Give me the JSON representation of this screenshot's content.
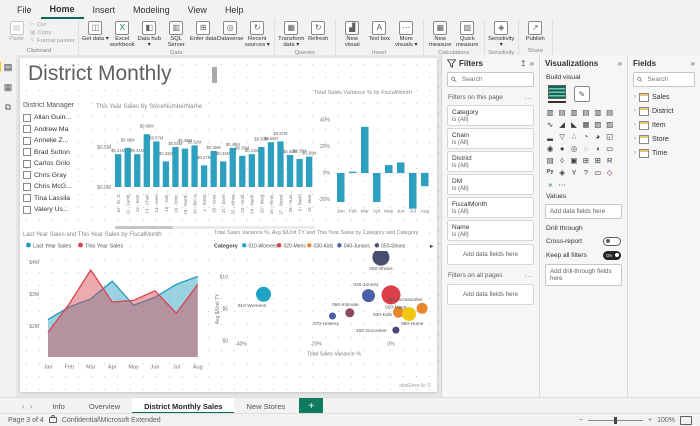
{
  "menu": {
    "items": [
      "File",
      "Home",
      "Insert",
      "Modeling",
      "View",
      "Help"
    ],
    "active": "Home"
  },
  "ribbon": {
    "groups": [
      {
        "name": "Clipboard",
        "buttons": [
          {
            "label": "Paste",
            "icon": "paste-icon",
            "disabled": true
          },
          {
            "label": "Cut",
            "icon": "cut-icon",
            "small": true,
            "disabled": true
          },
          {
            "label": "Copy",
            "icon": "copy-icon",
            "small": true,
            "disabled": true
          },
          {
            "label": "Format painter",
            "icon": "format-painter-icon",
            "small": true,
            "disabled": true
          }
        ]
      },
      {
        "name": "Data",
        "buttons": [
          {
            "label": "Get data",
            "icon": "get-data-icon",
            "dropdown": true
          },
          {
            "label": "Excel workbook",
            "icon": "excel-icon"
          },
          {
            "label": "Data hub",
            "icon": "data-hub-icon",
            "dropdown": true
          },
          {
            "label": "SQL Server",
            "icon": "sql-server-icon"
          },
          {
            "label": "Enter data",
            "icon": "enter-data-icon"
          },
          {
            "label": "Dataverse",
            "icon": "dataverse-icon"
          },
          {
            "label": "Recent sources",
            "icon": "recent-sources-icon",
            "dropdown": true
          }
        ]
      },
      {
        "name": "Queries",
        "buttons": [
          {
            "label": "Transform data",
            "icon": "transform-data-icon",
            "dropdown": true
          },
          {
            "label": "Refresh",
            "icon": "refresh-icon"
          }
        ]
      },
      {
        "name": "Insert",
        "buttons": [
          {
            "label": "New visual",
            "icon": "new-visual-icon"
          },
          {
            "label": "Text box",
            "icon": "text-box-icon"
          },
          {
            "label": "More visuals",
            "icon": "more-visuals-icon",
            "dropdown": true
          }
        ]
      },
      {
        "name": "Calculations",
        "buttons": [
          {
            "label": "New measure",
            "icon": "new-measure-icon"
          },
          {
            "label": "Quick measure",
            "icon": "quick-measure-icon"
          }
        ]
      },
      {
        "name": "Sensitivity",
        "buttons": [
          {
            "label": "Sensitivity",
            "icon": "sensitivity-icon",
            "dropdown": true
          }
        ]
      },
      {
        "name": "Share",
        "buttons": [
          {
            "label": "Publish",
            "icon": "publish-icon"
          }
        ]
      }
    ]
  },
  "view_rail": {
    "items": [
      "report-view",
      "data-view",
      "model-view"
    ],
    "active": "report-view"
  },
  "page": {
    "title": "District Monthly",
    "watermark": "obviEnce llc ©",
    "slicer": {
      "title": "District Manager",
      "items": [
        "Allan Guin...",
        "Andrew Ma",
        "Annelie Z...",
        "Brad Sutton",
        "Carlos Grilo",
        "Chris Gray",
        "Chris McG...",
        "Tina Lassila",
        "Valery Us..."
      ]
    }
  },
  "chart_data": [
    {
      "id": "store-sales",
      "type": "bar",
      "title": "This Year Sales by StoreNumberName",
      "categories": [
        "10 - St. O...",
        "11 - Camb...",
        "12 - Kent...",
        "13 - Charl...",
        "14 - Harri...",
        "15 - York...",
        "16 - Winc...",
        "18 - Worth...",
        "19 - Bel Ai...",
        "2 - Winst...",
        "20 - Gree...",
        "21 - Zane...",
        "22 - Whee...",
        "23 - Graft...",
        "24 - North...",
        "25 - Morg...",
        "26 - Akron...",
        "27 - Board...",
        "28 - Hunt...",
        "3 - Beckl...",
        "31 - Mart..."
      ],
      "values": [
        0.41,
        0.49,
        0.41,
        0.66,
        0.57,
        0.32,
        0.5,
        0.48,
        0.52,
        0.27,
        0.45,
        0.32,
        0.49,
        0.39,
        0.41,
        0.5,
        0.56,
        0.57,
        0.4,
        0.35,
        0.38
      ],
      "y_ticks": [
        "$0.5M",
        "$0.0M"
      ],
      "unit": "M",
      "color": "#2CA0BE",
      "has_scrollbar": true
    },
    {
      "id": "variance-by-month",
      "type": "column",
      "title": "Total Sales Variance % by FiscalMonth",
      "categories": [
        "Jan",
        "Feb",
        "Mar",
        "Apr",
        "May",
        "Jun",
        "Jul",
        "Aug"
      ],
      "values": [
        -22,
        1,
        35,
        -22,
        6,
        8,
        -27,
        -10
      ],
      "y_ticks": [
        40,
        20,
        0,
        -20
      ],
      "ylim": [
        -30,
        42
      ],
      "color": "#2CA0BE"
    },
    {
      "id": "sales-by-month",
      "type": "area",
      "title": "Last Year Sales and This Year Sales by FiscalMonth",
      "categories": [
        "Jan",
        "Feb",
        "Mar",
        "Apr",
        "May",
        "Jun",
        "Jul",
        "Aug"
      ],
      "series": [
        {
          "name": "Last Year Sales",
          "color": "#1F9CBD",
          "values": [
            2.2,
            2.6,
            2.85,
            3.4,
            2.65,
            2.9,
            3.3,
            3.55
          ]
        },
        {
          "name": "This Year Sales",
          "color": "#D64550",
          "values": [
            1.8,
            2.7,
            3.75,
            2.75,
            2.8,
            3.1,
            2.4,
            3.3
          ]
        }
      ],
      "y_ticks": [
        "$4M",
        "$3M",
        "$2M"
      ],
      "ylim": [
        1,
        4.3
      ],
      "legend_position": "top"
    },
    {
      "id": "variance-scatter",
      "type": "scatter",
      "title": "Total Sales Variance %, Avg $/Unit TY and This Year Sales by Category and Category",
      "xlabel": "Total Sales Variance %",
      "ylabel": "Avg $/Unit TY",
      "x_ticks": [
        "-40%",
        "-20%",
        "0%"
      ],
      "y_ticks": [
        "$10",
        "$5",
        "$0"
      ],
      "legend_title": "Category",
      "legend": [
        "010-Womens",
        "020-Mens",
        "030-Kids",
        "040-Juniors",
        "050-Shoes"
      ],
      "points": [
        {
          "label": "050-Shoes",
          "x": -2.7,
          "y": 13.1,
          "size": 8.5,
          "color": "#4A4E6E"
        },
        {
          "label": "010-Womens",
          "x": -34,
          "y": 7.3,
          "size": 7.5,
          "color": "#1FA3C3"
        },
        {
          "label": "040-Juniors",
          "x": -6,
          "y": 7.1,
          "size": 6.5,
          "color": "#4A5FA5"
        },
        {
          "label": "060-Intimate",
          "x": -11,
          "y": 4.4,
          "size": 4.5,
          "color": "#8A4B5F"
        },
        {
          "label": "070-Hosiery",
          "x": -15.6,
          "y": 3.9,
          "size": 3.5,
          "color": "#4A5FA5"
        },
        {
          "label": "030-Kids",
          "x": 2,
          "y": 4.5,
          "size": 5.5,
          "color": "#E8862C"
        },
        {
          "label": "020-Mens",
          "x": 0,
          "y": 7.2,
          "size": 9.5,
          "color": "#DC3F47"
        },
        {
          "label": "080-Accessories",
          "x": 8.3,
          "y": 5.1,
          "size": 5.5,
          "color": "#E8862C"
        },
        {
          "label": "090-Home",
          "x": 4.8,
          "y": 4.2,
          "size": 7,
          "color": "#F2C80F"
        },
        {
          "label": "100-Groceries",
          "x": 1.3,
          "y": 1.7,
          "size": 3.5,
          "color": "#4A4775"
        }
      ]
    }
  ],
  "filters": {
    "title": "Filters",
    "search_placeholder": "Search",
    "sections": [
      {
        "label": "Filters on this page",
        "cards": [
          {
            "field": "Category",
            "value": "is (All)"
          },
          {
            "field": "Chain",
            "value": "is (All)"
          },
          {
            "field": "District",
            "value": "is (All)"
          },
          {
            "field": "DM",
            "value": "is (All)"
          },
          {
            "field": "FiscalMonth",
            "value": "is (All)"
          },
          {
            "field": "Name",
            "value": "is (All)"
          }
        ],
        "add_label": "Add data fields here"
      },
      {
        "label": "Filters on all pages",
        "cards": [],
        "add_label": "Add data fields here"
      }
    ]
  },
  "visualizations": {
    "title": "Visualizations",
    "build_label": "Build visual",
    "icons": [
      "stacked-bar-chart",
      "stacked-column-chart",
      "clustered-bar-chart",
      "clustered-column-chart",
      "100-stacked-bar-chart",
      "100-stacked-column-chart",
      "line-chart",
      "area-chart",
      "stacked-area-chart",
      "line-and-stacked-column-chart",
      "line-and-clustered-column-chart",
      "ribbon-chart",
      "waterfall-chart",
      "funnel-chart",
      "scatter-chart",
      "pie-chart",
      "donut-chart",
      "treemap",
      "map",
      "filled-map",
      "shape-map",
      "azure-map",
      "gauge",
      "card",
      "multi-row-card",
      "kpi",
      "slicer",
      "table",
      "matrix",
      "r-script-visual",
      "python-visual",
      "key-influencers",
      "decomposition-tree",
      "q-and-a",
      "paginated-report",
      "power-apps",
      "power-automate",
      "get-more-visuals"
    ],
    "values_label": "Values",
    "values_placeholder": "Add data fields here",
    "drill": {
      "label": "Drill through",
      "cross_report": "Cross-report",
      "cross_report_state": "Off",
      "keep_filters": "Keep all filters",
      "keep_filters_state": "On",
      "add_placeholder": "Add drill-through fields here"
    }
  },
  "fields": {
    "title": "Fields",
    "search_placeholder": "Search",
    "tables": [
      "Sales",
      "District",
      "Item",
      "Store",
      "Time"
    ]
  },
  "tabs": {
    "items": [
      "Info",
      "Overview",
      "District Monthly Sales",
      "New Stores"
    ],
    "active": "District Monthly Sales"
  },
  "status": {
    "page": "Page 3 of 4",
    "label": "Confidential\\Microsoft Extended",
    "zoom": "100%"
  }
}
